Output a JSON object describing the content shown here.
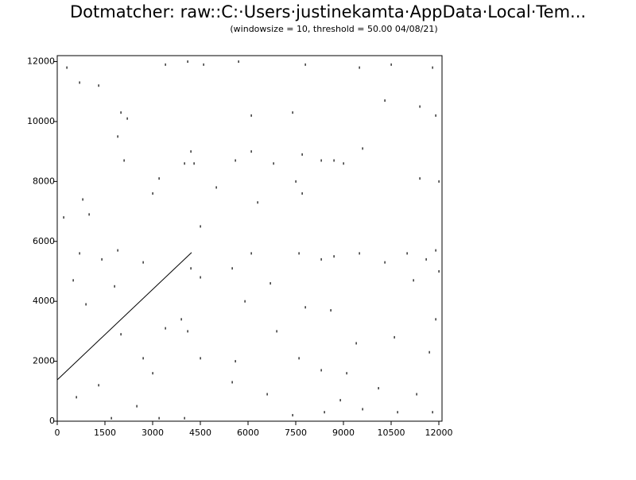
{
  "chart_data": {
    "type": "scatter",
    "title": "Dotmatcher: raw::C:·Users·justinekamta·AppData·Local·Tem...",
    "subtitle": "(windowsize = 10, threshold = 50.00  04/08/21)",
    "xlim": [
      0,
      12100
    ],
    "ylim": [
      0,
      12200
    ],
    "xticks": [
      0,
      1500,
      3000,
      4500,
      6000,
      7500,
      9000,
      10500,
      12000
    ],
    "yticks": [
      0,
      2000,
      4000,
      6000,
      8000,
      10000,
      12000
    ],
    "color": "#000000",
    "series": [
      {
        "type": "scatter",
        "x": [
          2200,
          2000,
          1300,
          700,
          300,
          3400,
          4100,
          4600,
          5700,
          7800,
          9500,
          10500,
          11800,
          11400,
          11900,
          10300,
          7400,
          6100,
          4200,
          4000,
          4300,
          5600,
          6100,
          6800,
          7700,
          8300,
          8700,
          9000,
          9600,
          11400,
          12000,
          7500,
          7700,
          3200,
          3000,
          2100,
          1900,
          800,
          200,
          1000,
          1900,
          1400,
          700,
          2700,
          4200,
          4500,
          5500,
          6100,
          7600,
          8300,
          8700,
          9500,
          11000,
          11600,
          11900,
          10300,
          11200,
          6700,
          7800,
          8600,
          9400,
          10600,
          11700,
          11900,
          3900,
          4100,
          3400,
          1800,
          900,
          2700,
          3000,
          4500,
          5600,
          7600,
          8300,
          9100,
          8900,
          10100,
          11300,
          11800,
          2500,
          600,
          1700,
          3200,
          4000,
          5500,
          6600,
          7400,
          8400,
          9600,
          10700,
          12000,
          500,
          6300,
          5000,
          4500,
          5900,
          6900,
          2000,
          1300
        ],
        "y": [
          10100,
          10300,
          11200,
          11300,
          11800,
          11900,
          12000,
          11900,
          12000,
          11900,
          11800,
          11900,
          11800,
          10500,
          10200,
          10700,
          10300,
          10200,
          9000,
          8600,
          8600,
          8700,
          9000,
          8600,
          8900,
          8700,
          8700,
          8600,
          9100,
          8100,
          8000,
          8000,
          7600,
          8100,
          7600,
          8700,
          9500,
          7400,
          6800,
          6900,
          5700,
          5400,
          5600,
          5300,
          5100,
          4800,
          5100,
          5600,
          5600,
          5400,
          5500,
          5600,
          5600,
          5400,
          5700,
          5300,
          4700,
          4600,
          3800,
          3700,
          2600,
          2800,
          2300,
          3400,
          3400,
          3000,
          3100,
          4500,
          3900,
          2100,
          1600,
          2100,
          2000,
          2100,
          1700,
          1600,
          700,
          1100,
          900,
          300,
          500,
          800,
          100,
          100,
          100,
          1300,
          900,
          200,
          300,
          400,
          300,
          5000,
          4700,
          7300,
          7800,
          6500,
          4000,
          3000,
          2900,
          1200
        ]
      },
      {
        "type": "line",
        "x": [
          0,
          4225
        ],
        "y": [
          1380,
          5630
        ]
      }
    ]
  }
}
